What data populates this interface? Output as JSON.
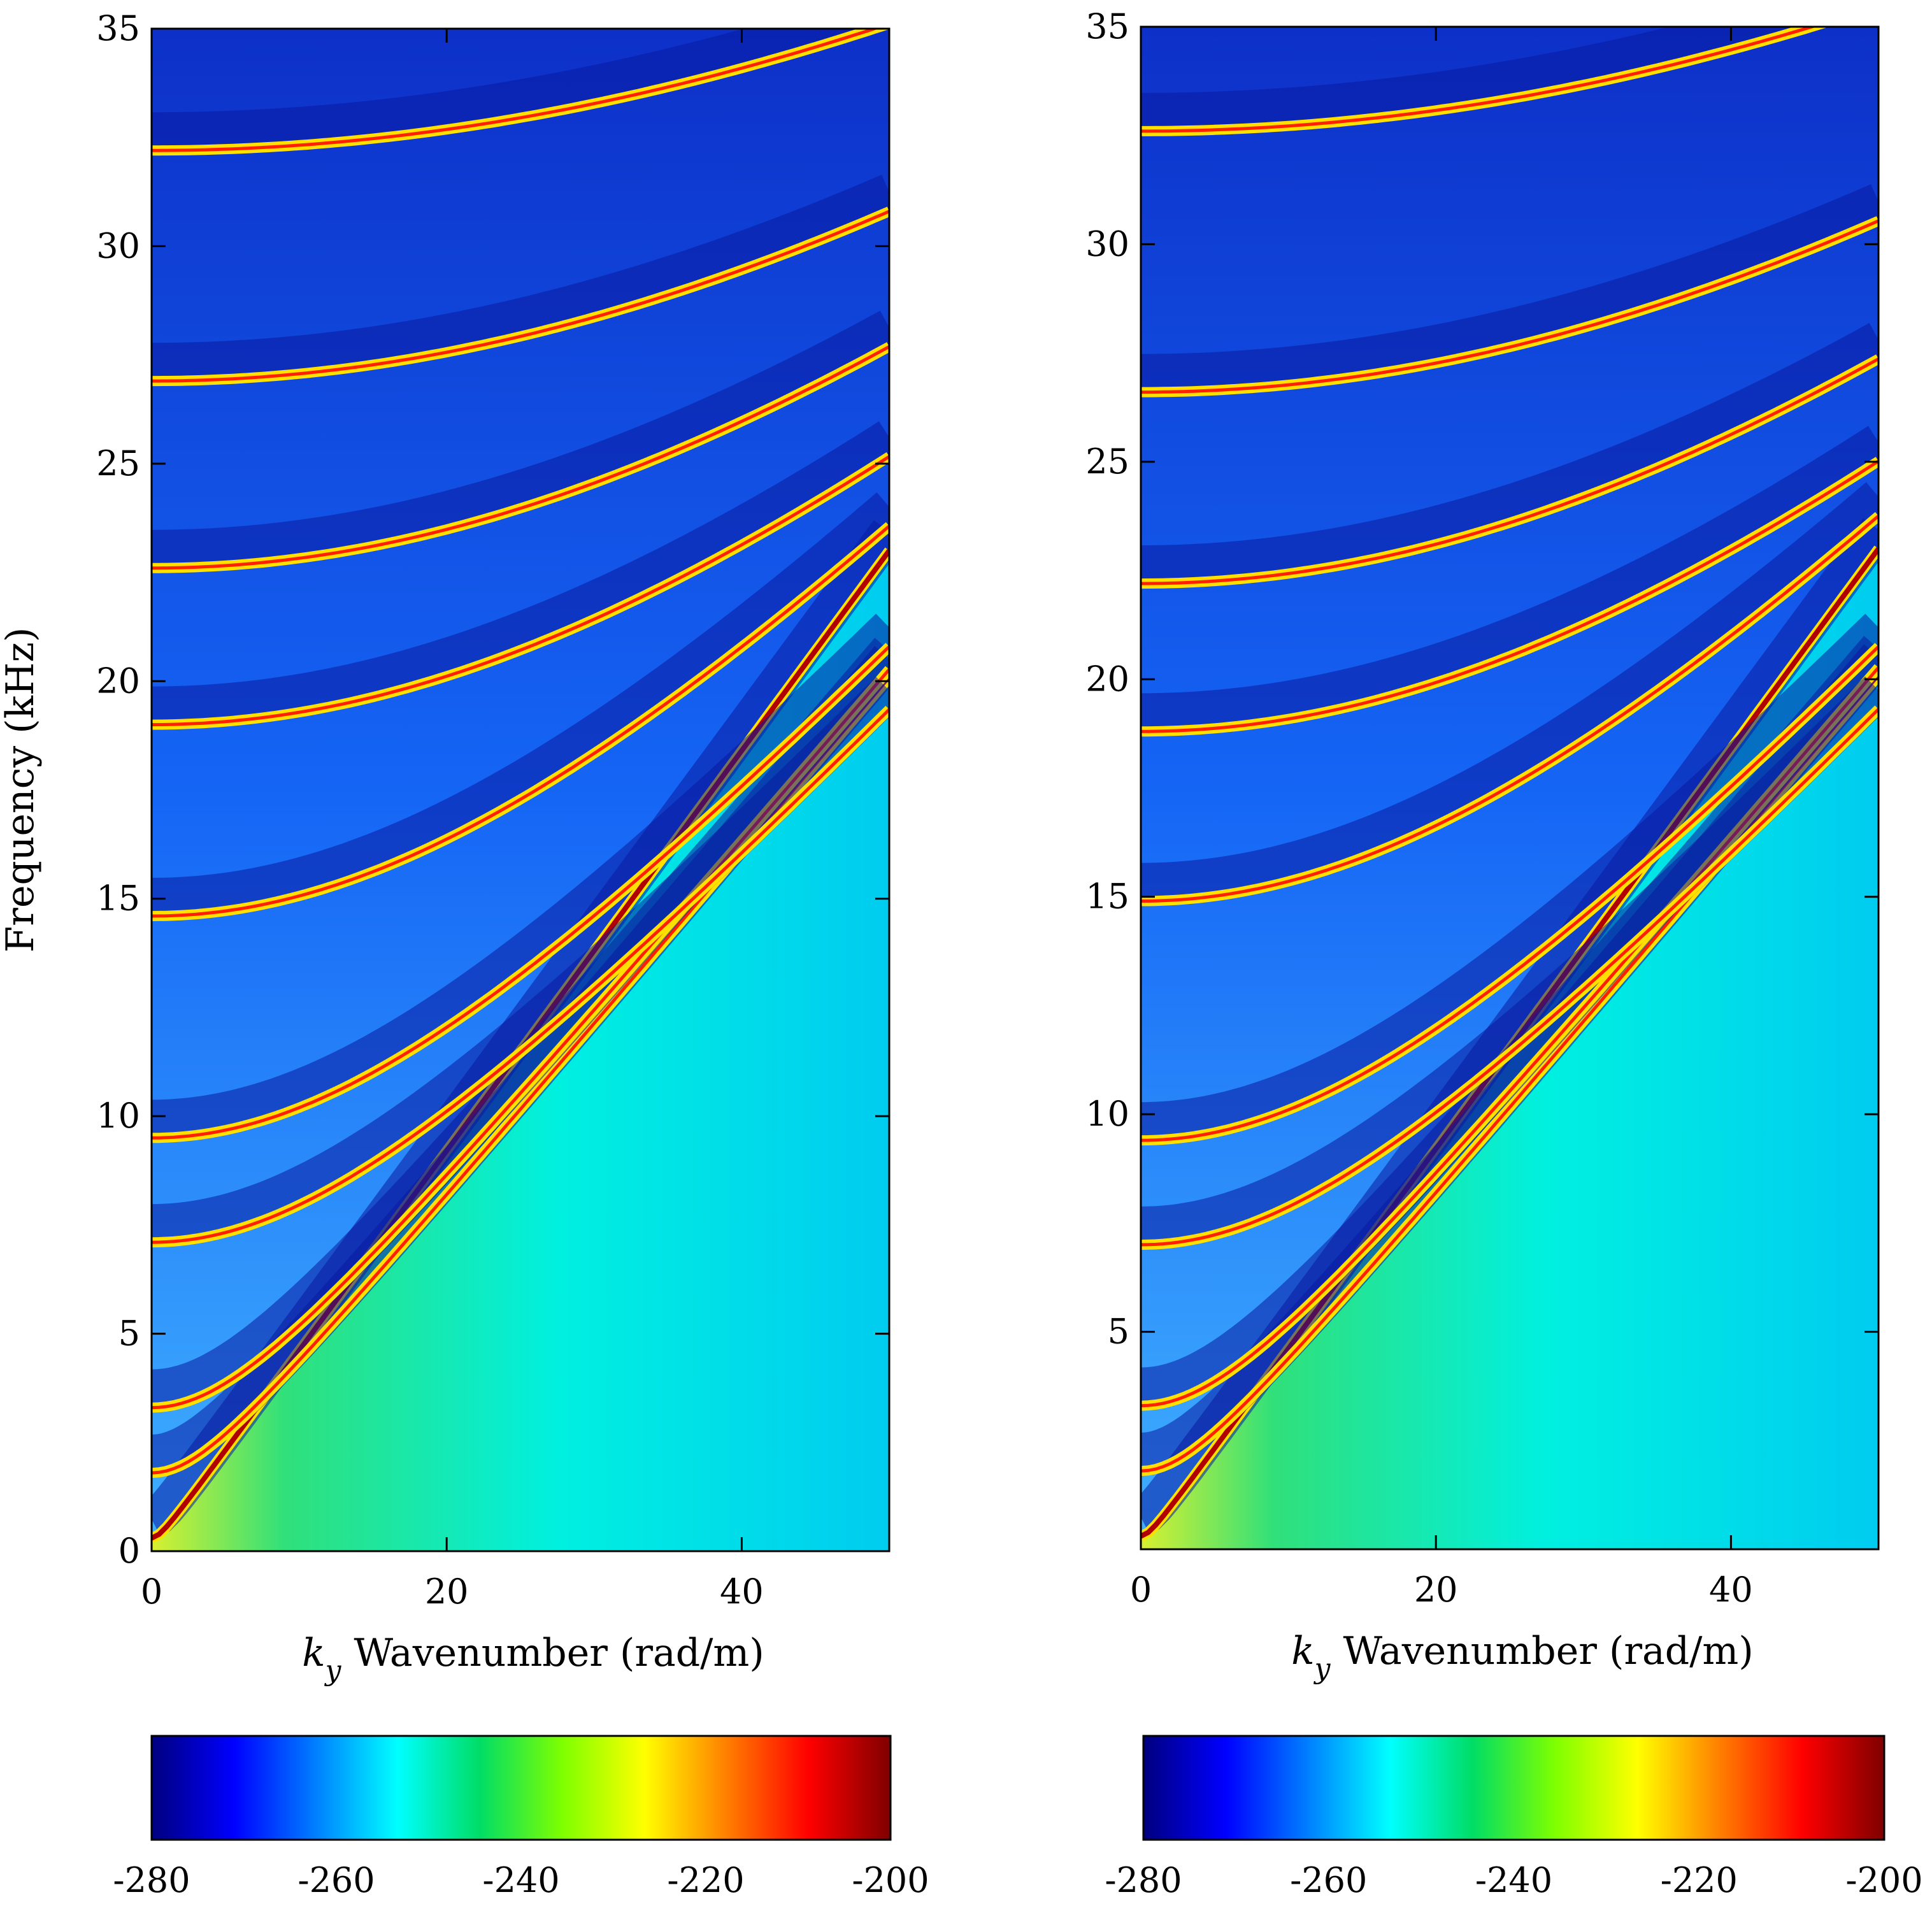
{
  "chart_data": [
    {
      "type": "heatmap",
      "panel": "left",
      "xlabel_symbol": "k",
      "xlabel_subscript": "y",
      "xlabel_text": "Wavenumber (rad/m)",
      "ylabel": "Frequency (kHz)",
      "xlim": [
        0,
        50
      ],
      "ylim": [
        0,
        35
      ],
      "xticks": [
        0,
        20,
        40
      ],
      "yticks": [
        0,
        5,
        10,
        15,
        20,
        25,
        30,
        35
      ],
      "colormap": "jet",
      "clim": [
        -280,
        -200
      ],
      "colorbar_ticks": [
        -280,
        -260,
        -240,
        -220,
        -200
      ],
      "colorbar_position": "bottom",
      "dispersion_curves": [
        {
          "k0": 0,
          "f0": 0.3,
          "a": 0.42
        },
        {
          "k0": 0,
          "f0": 1.8,
          "a": 0.4
        },
        {
          "k0": 0,
          "f0": 3.3,
          "a": 0.4
        },
        {
          "k0": 0,
          "f0": 7.1,
          "a": 0.36
        },
        {
          "k0": 0,
          "f0": 9.5,
          "a": 0.37
        },
        {
          "k0": 0,
          "f0": 14.6,
          "a": 0.37
        },
        {
          "k0": 0,
          "f0": 19.0,
          "a": 0.33
        },
        {
          "k0": 0,
          "f0": 22.6,
          "a": 0.32
        },
        {
          "k0": 0,
          "f0": 26.9,
          "a": 0.3
        },
        {
          "k0": 0,
          "f0": 32.2,
          "a": 0.28
        }
      ]
    },
    {
      "type": "heatmap",
      "panel": "right",
      "xlabel_symbol": "k",
      "xlabel_subscript": "y",
      "xlabel_text": "Wavenumber (rad/m)",
      "ylabel": "",
      "xlim": [
        0,
        50
      ],
      "ylim": [
        0,
        35
      ],
      "xticks": [
        0,
        20,
        40
      ],
      "yticks": [
        5,
        10,
        15,
        20,
        25,
        30,
        35
      ],
      "colormap": "jet",
      "clim": [
        -280,
        -200
      ],
      "colorbar_ticks": [
        -280,
        -260,
        -240,
        -220,
        -200
      ],
      "colorbar_position": "bottom",
      "dispersion_curves": [
        {
          "k0": 0,
          "f0": 0.3,
          "a": 0.42
        },
        {
          "k0": 0,
          "f0": 1.8,
          "a": 0.4
        },
        {
          "k0": 0,
          "f0": 3.3,
          "a": 0.4
        },
        {
          "k0": 0,
          "f0": 7.0,
          "a": 0.36
        },
        {
          "k0": 0,
          "f0": 9.4,
          "a": 0.37
        },
        {
          "k0": 0,
          "f0": 14.9,
          "a": 0.37
        },
        {
          "k0": 0,
          "f0": 18.8,
          "a": 0.33
        },
        {
          "k0": 0,
          "f0": 22.2,
          "a": 0.32
        },
        {
          "k0": 0,
          "f0": 26.6,
          "a": 0.3
        },
        {
          "k0": 0,
          "f0": 32.6,
          "a": 0.28
        }
      ]
    }
  ],
  "colors": {
    "jet_stops": [
      "#00007f",
      "#0000ff",
      "#007fff",
      "#00ffff",
      "#00dd66",
      "#7fff00",
      "#ffff00",
      "#ff7f00",
      "#ff0000",
      "#7f0000"
    ],
    "background_fill": "#1ee07a",
    "upper_fill": "#1a6cff",
    "axis": "#000000"
  }
}
